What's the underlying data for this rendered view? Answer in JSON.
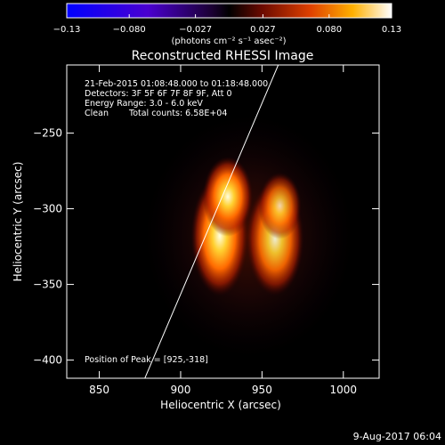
{
  "chart_data": {
    "type": "heatmap",
    "title": "Reconstructed RHESSI Image",
    "xlabel": "Heliocentric X (arcsec)",
    "ylabel": "Heliocentric Y (arcsec)",
    "xlim": [
      830,
      1022
    ],
    "ylim": [
      -412,
      -205
    ],
    "x_ticks": [
      850,
      900,
      950,
      1000
    ],
    "y_ticks": [
      -250,
      -300,
      -350,
      -400
    ],
    "colorbar": {
      "ticks": [
        -0.13,
        -0.08,
        -0.027,
        0.027,
        0.08,
        0.13
      ],
      "tick_labels": [
        "−0.13",
        "−0.080",
        "−0.027",
        "0.027",
        "0.080",
        "0.13"
      ],
      "range": [
        -0.13,
        0.13
      ],
      "units_label": "(photons cm⁻² s⁻¹ asec⁻²)"
    },
    "annotations": {
      "time_range": "21-Feb-2015 01:08:48.000 to 01:18:48.000",
      "detectors": "Detectors: 3F 5F 6F 7F 8F 9F, Att 0",
      "energy_range": "Energy Range: 3.0 - 6.0 keV",
      "clean": "Clean",
      "total_counts": "Total counts: 6.58E+04",
      "peak_position": "Position of Peak = [925,-318]"
    },
    "sources": [
      {
        "x": 924,
        "y": -318,
        "peak": 0.13,
        "sx": 8,
        "sy": 18
      },
      {
        "x": 929,
        "y": -292,
        "peak": 0.11,
        "sx": 7,
        "sy": 12
      },
      {
        "x": 958,
        "y": -320,
        "peak": 0.1,
        "sx": 8,
        "sy": 17
      },
      {
        "x": 961,
        "y": -298,
        "peak": 0.08,
        "sx": 6,
        "sy": 10
      },
      {
        "x": 942,
        "y": -318,
        "peak": 0.04,
        "sx": 40,
        "sy": 50
      }
    ],
    "limb_line": [
      [
        878,
        -412
      ],
      [
        960,
        -205
      ]
    ],
    "footer": "9-Aug-2017 06:04"
  }
}
